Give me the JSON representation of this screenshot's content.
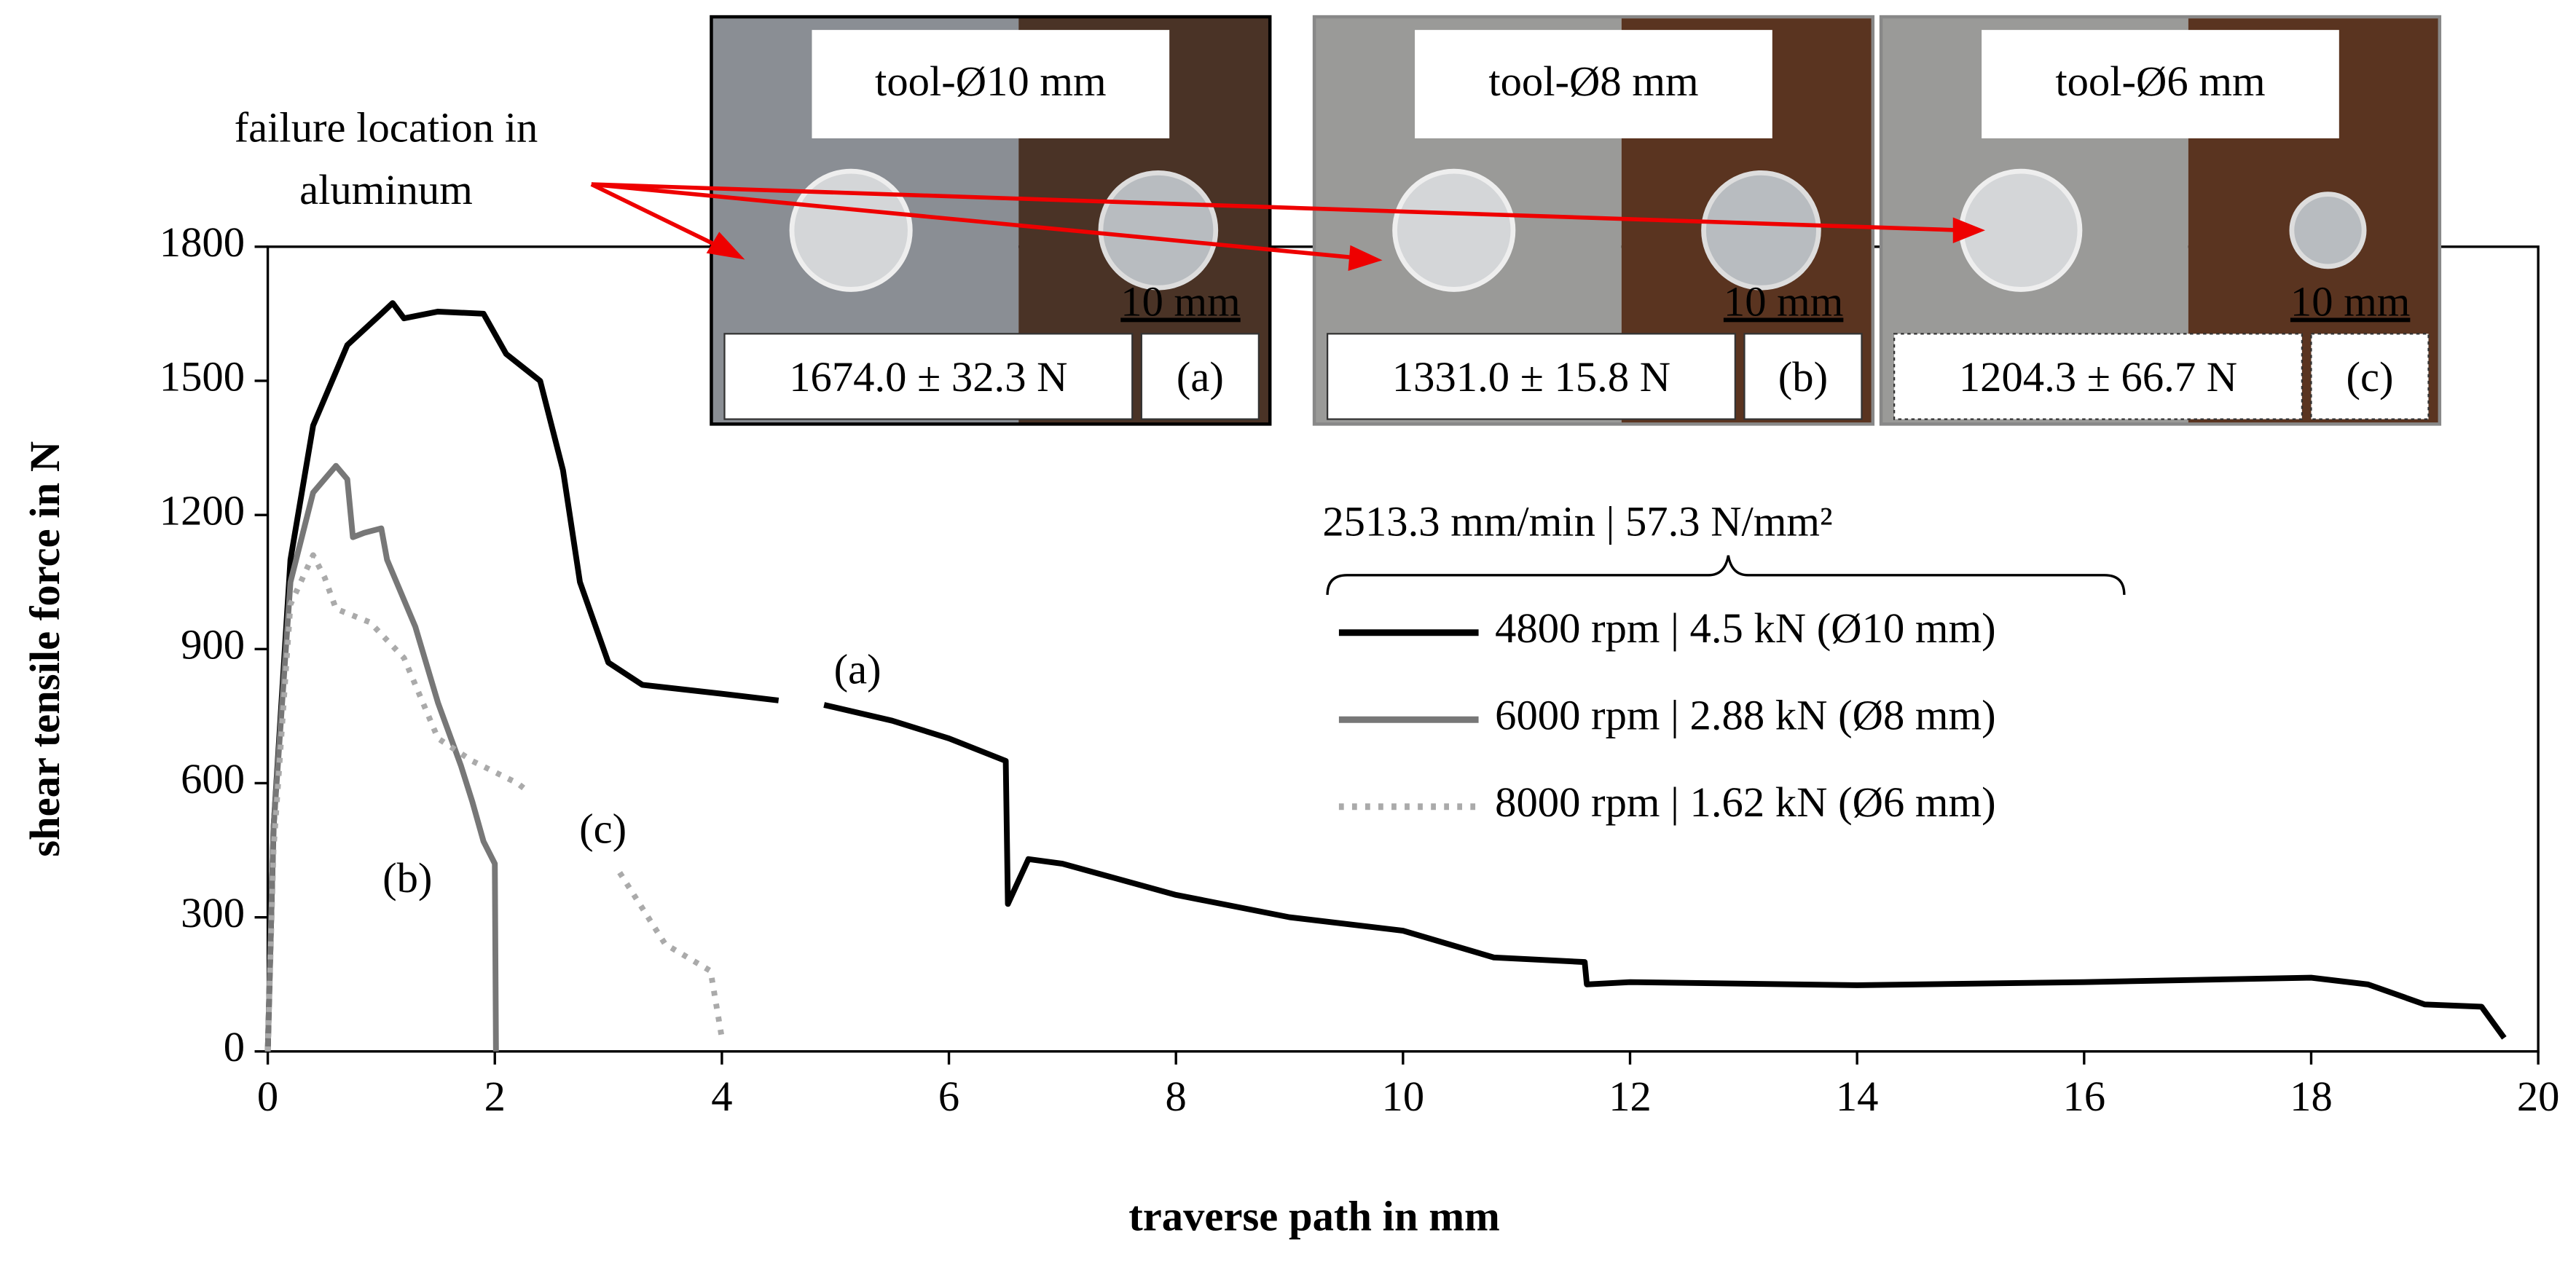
{
  "chart_data": {
    "type": "line",
    "x_label": "traverse path in mm",
    "y_label": "shear tensile force in N",
    "xlim": [
      0,
      20
    ],
    "xticks": [
      0,
      2,
      4,
      6,
      8,
      10,
      12,
      14,
      16,
      18,
      20
    ],
    "ylim": [
      0,
      1800
    ],
    "yticks": [
      0,
      300,
      600,
      900,
      1200,
      1500,
      1800
    ],
    "grid": false,
    "legend_title": "2513.3 mm/min  |  57.3 N/mm²",
    "series": [
      {
        "name": "4800 rpm  |  4.5 kN (Ø10 mm)",
        "color": "#000000",
        "style": "solid",
        "label": "(a)",
        "x": [
          0,
          0.05,
          0.2,
          0.4,
          0.7,
          1.0,
          1.1,
          1.2,
          1.5,
          1.9,
          2.1,
          2.4,
          2.6,
          2.75,
          3.0,
          3.3,
          4.0,
          4.5,
          null,
          4.9,
          5.5,
          6.0,
          6.5,
          6.52,
          6.7,
          7.0,
          8,
          9,
          10,
          10.8,
          11.6,
          11.62,
          12,
          14,
          16,
          18,
          18.5,
          19,
          19.5,
          19.7
        ],
        "values": [
          0,
          500,
          1100,
          1400,
          1580,
          1650,
          1674,
          1640,
          1655,
          1650,
          1560,
          1500,
          1300,
          1050,
          870,
          820,
          800,
          785,
          null,
          775,
          740,
          700,
          650,
          330,
          430,
          420,
          350,
          300,
          270,
          210,
          200,
          150,
          155,
          148,
          155,
          165,
          150,
          105,
          100,
          30
        ]
      },
      {
        "name": "6000 rpm  |  2.88 kN (Ø8 mm)",
        "color": "#777777",
        "style": "solid",
        "label": "(b)",
        "x": [
          0,
          0.05,
          0.2,
          0.4,
          0.6,
          0.7,
          0.75,
          0.85,
          1.0,
          1.05,
          1.3,
          1.5,
          1.7,
          1.8,
          1.9,
          2.0,
          2.01
        ],
        "values": [
          0,
          500,
          1050,
          1250,
          1310,
          1280,
          1150,
          1160,
          1170,
          1100,
          950,
          780,
          640,
          560,
          470,
          420,
          0
        ]
      },
      {
        "name": "8000 rpm  |  1.62 kN (Ø6 mm)",
        "color": "#aaaaaa",
        "style": "dotted",
        "label": "(c)",
        "x": [
          0,
          0.05,
          0.2,
          0.4,
          0.5,
          0.6,
          0.9,
          1.2,
          1.5,
          1.8,
          2.2,
          2.3,
          null,
          3.1,
          3.5,
          3.9,
          4.0
        ],
        "values": [
          0,
          450,
          1000,
          1110,
          1060,
          990,
          960,
          880,
          700,
          650,
          600,
          580,
          null,
          400,
          240,
          180,
          30
        ]
      }
    ],
    "annotation": [
      "failure location  in",
      "aluminum"
    ],
    "insets": [
      {
        "title": "tool-Ø10 mm",
        "scale": "10 mm",
        "force": "1674.0 ± 32.3 N",
        "label": "(a)"
      },
      {
        "title": "tool-Ø8 mm",
        "scale": "10 mm",
        "force": "1331.0 ± 15.8 N",
        "label": "(b)"
      },
      {
        "title": "tool-Ø6 mm",
        "scale": "10 mm",
        "force": "1204.3 ± 66.7 N",
        "label": "(c)"
      }
    ]
  }
}
